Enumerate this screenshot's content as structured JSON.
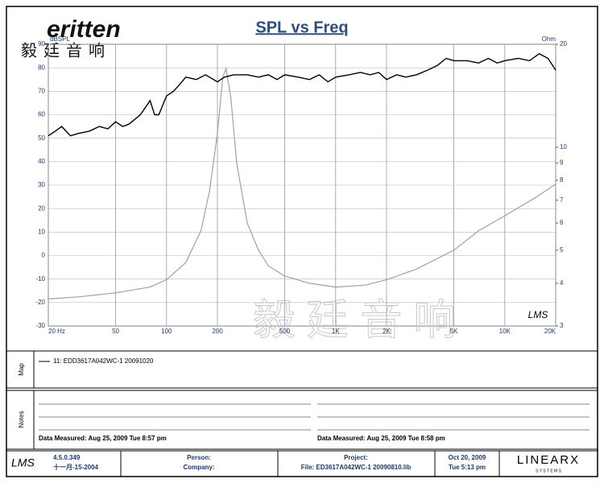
{
  "logo": {
    "brand": "eritten",
    "chinese": "毅廷音响"
  },
  "chart_data": {
    "type": "line",
    "title": "SPL vs Freq",
    "ylabel": "dBSPL",
    "y2label": "Ohm",
    "corner_mark": "LMS",
    "watermark": "毅 廷 音 响",
    "xscale": "log",
    "y2scale": "log",
    "grid": true,
    "xlim": [
      20,
      20000
    ],
    "xticks": [
      {
        "value": 20,
        "label": "20  Hz"
      },
      50,
      100,
      200,
      500,
      {
        "value": 1000,
        "label": "1K"
      },
      {
        "value": 2000,
        "label": "2K"
      },
      {
        "value": 5000,
        "label": "5K"
      },
      {
        "value": 10000,
        "label": "10K"
      },
      {
        "value": 20000,
        "label": "20K"
      }
    ],
    "ylim": [
      -30,
      90
    ],
    "yticks": [
      -30,
      -20,
      -10,
      0,
      10,
      20,
      30,
      40,
      50,
      60,
      70,
      80,
      90
    ],
    "y2lim": [
      3,
      20
    ],
    "y2ticks": [
      3,
      4,
      5,
      6,
      7,
      8,
      9,
      10,
      20
    ],
    "series": [
      {
        "name": "11: EDD3617A042WC-1   20091020",
        "color": "#000000",
        "x": [
          20,
          22,
          24,
          27,
          30,
          35,
          40,
          45,
          50,
          55,
          60,
          70,
          80,
          85,
          90,
          100,
          110,
          120,
          130,
          150,
          170,
          200,
          220,
          250,
          300,
          350,
          400,
          450,
          500,
          600,
          700,
          800,
          900,
          1000,
          1200,
          1400,
          1600,
          1800,
          2000,
          2300,
          2600,
          3000,
          3500,
          4000,
          4500,
          5000,
          6000,
          7000,
          8000,
          9000,
          10000,
          12000,
          14000,
          16000,
          18000,
          20000
        ],
        "values": [
          51,
          53,
          55,
          51,
          52,
          53,
          55,
          54,
          57,
          55,
          56,
          60,
          66,
          60,
          60,
          68,
          70,
          73,
          76,
          75,
          77,
          74,
          76,
          77,
          77,
          76,
          77,
          75,
          77,
          76,
          75,
          77,
          74,
          76,
          77,
          78,
          77,
          78,
          75,
          77,
          76,
          77,
          79,
          81,
          84,
          83,
          83,
          82,
          84,
          82,
          83,
          84,
          83,
          86,
          84,
          79
        ]
      },
      {
        "color": "#a0a0a0",
        "axis": "y2",
        "x": [
          20,
          30,
          50,
          80,
          100,
          130,
          160,
          180,
          200,
          215,
          225,
          240,
          260,
          300,
          350,
          400,
          500,
          700,
          1000,
          1500,
          2000,
          3000,
          5000,
          7000,
          10000,
          15000,
          20000
        ],
        "values": [
          3.6,
          3.65,
          3.75,
          3.9,
          4.1,
          4.6,
          5.7,
          7.5,
          11,
          16,
          17,
          14,
          9,
          6,
          5,
          4.5,
          4.2,
          4.0,
          3.9,
          3.95,
          4.1,
          4.4,
          5,
          5.7,
          6.3,
          7.1,
          7.8
        ]
      }
    ]
  },
  "map": {
    "label": "Map"
  },
  "notes": {
    "label": "Notes",
    "measured_1": "Data Measured: Aug 25, 2009  Tue  8:57 pm",
    "measured_2": "Data Measured: Aug 25, 2009  Tue  8:58 pm"
  },
  "footer": {
    "lms": "LMS",
    "version": "4.5.0.349",
    "version_date": "十一月-15-2004",
    "person": "Person:",
    "company": "Company:",
    "project": "Project:",
    "file": "File: ED3617A042WC-1  20090810.lib",
    "date": "Oct 20, 2009",
    "time": "Tue  5:13 pm",
    "brand": "LINEARX",
    "brand_sub": "S Y S T E M S"
  }
}
